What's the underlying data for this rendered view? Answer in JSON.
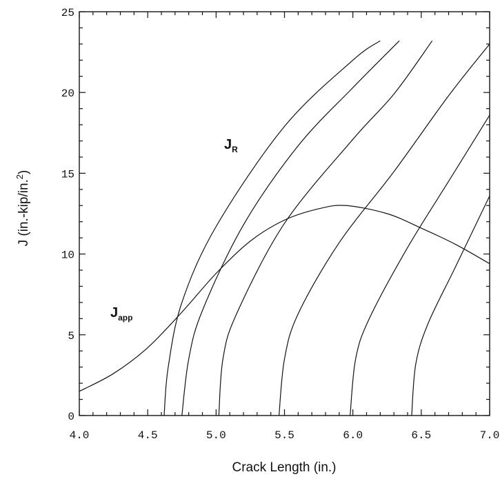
{
  "chart_data": {
    "type": "line",
    "title": "",
    "xlabel": "Crack Length (in.)",
    "ylabel_parts": {
      "main": "J (in.-kip/in.",
      "sup": "2",
      "close": ")"
    },
    "xlim": [
      4.0,
      7.0
    ],
    "ylim": [
      0,
      25
    ],
    "x_ticks": [
      "4.0",
      "4.5",
      "5.0",
      "5.5",
      "6.0",
      "6.5",
      "7.0"
    ],
    "y_ticks": [
      "0",
      "5",
      "10",
      "15",
      "20",
      "25"
    ],
    "grid": false,
    "annotations": [
      {
        "base": "J",
        "sub": "R"
      },
      {
        "base": "J",
        "sub": "app"
      }
    ],
    "series": [
      {
        "curve": "J_app",
        "x": [
          4.0,
          4.25,
          4.5,
          4.75,
          5.0,
          5.25,
          5.5,
          5.75,
          5.95,
          6.25,
          6.5,
          6.75,
          7.0
        ],
        "y": [
          1.5,
          2.6,
          4.2,
          6.4,
          8.8,
          10.8,
          12.1,
          12.8,
          13.0,
          12.5,
          11.6,
          10.6,
          9.4
        ]
      },
      {
        "curve": "J_R",
        "x": [
          4.62,
          4.65,
          4.75,
          5.0,
          5.5,
          6.0,
          6.2
        ],
        "y": [
          0,
          3.0,
          7.0,
          11.7,
          17.9,
          22.0,
          23.2
        ]
      },
      {
        "curve": "J_R",
        "x": [
          4.75,
          4.8,
          4.9,
          5.2,
          5.6,
          6.0,
          6.34
        ],
        "y": [
          0,
          3.5,
          6.5,
          11.8,
          16.7,
          20.3,
          23.2
        ]
      },
      {
        "curve": "J_R",
        "x": [
          5.02,
          5.05,
          5.15,
          5.5,
          6.0,
          6.3,
          6.58
        ],
        "y": [
          0,
          3.5,
          6.3,
          11.9,
          17.1,
          19.9,
          23.2
        ]
      },
      {
        "curve": "J_R",
        "x": [
          5.46,
          5.5,
          5.6,
          5.9,
          6.3,
          6.7,
          7.0
        ],
        "y": [
          0,
          3.5,
          6.3,
          10.7,
          15.1,
          19.8,
          23.0
        ]
      },
      {
        "curve": "J_R",
        "x": [
          5.98,
          6.02,
          6.12,
          6.4,
          6.7,
          7.0
        ],
        "y": [
          0,
          3.5,
          6.0,
          10.4,
          14.5,
          18.6
        ]
      },
      {
        "curve": "J_R",
        "x": [
          6.43,
          6.46,
          6.55,
          6.75,
          7.0
        ],
        "y": [
          0,
          3.2,
          5.7,
          9.2,
          13.6
        ]
      }
    ]
  }
}
